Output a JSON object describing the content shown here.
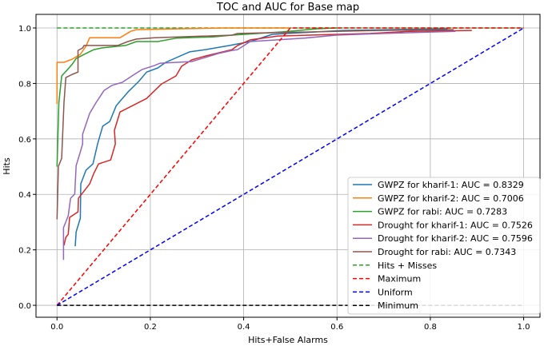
{
  "chart_data": {
    "type": "line",
    "title": "TOC and AUC for Base map",
    "xlabel": "Hits+False Alarms",
    "ylabel": "Hits",
    "xlim": [
      -0.045,
      1.035
    ],
    "ylim": [
      -0.043,
      1.049
    ],
    "xticks": [
      "0.0",
      "0.2",
      "0.4",
      "0.6",
      "0.8",
      "1.0"
    ],
    "yticks": [
      "0.0",
      "0.2",
      "0.4",
      "0.6",
      "0.8",
      "1.0"
    ],
    "grid": true,
    "legend_position": "lower-right",
    "series": [
      {
        "name": "GWPZ for kharif-1: AUC = 0.8329",
        "color": "#1f77b4",
        "dash": false,
        "points": [
          [
            0.039,
            0.213
          ],
          [
            0.041,
            0.265
          ],
          [
            0.05,
            0.314
          ],
          [
            0.051,
            0.438
          ],
          [
            0.062,
            0.487
          ],
          [
            0.077,
            0.51
          ],
          [
            0.087,
            0.582
          ],
          [
            0.098,
            0.646
          ],
          [
            0.113,
            0.663
          ],
          [
            0.127,
            0.72
          ],
          [
            0.152,
            0.769
          ],
          [
            0.175,
            0.807
          ],
          [
            0.192,
            0.841
          ],
          [
            0.216,
            0.856
          ],
          [
            0.233,
            0.876
          ],
          [
            0.284,
            0.914
          ],
          [
            0.318,
            0.922
          ],
          [
            0.37,
            0.937
          ],
          [
            0.414,
            0.951
          ],
          [
            0.461,
            0.977
          ],
          [
            0.61,
            0.991
          ],
          [
            0.837,
            0.997
          ]
        ]
      },
      {
        "name": "GWPZ for kharif-2: AUC = 0.7006",
        "color": "#ff7f0e",
        "dash": false,
        "points": [
          [
            0.0,
            0.726
          ],
          [
            0.0,
            0.876
          ],
          [
            0.015,
            0.876
          ],
          [
            0.033,
            0.888
          ],
          [
            0.05,
            0.905
          ],
          [
            0.062,
            0.934
          ],
          [
            0.07,
            0.965
          ],
          [
            0.135,
            0.965
          ],
          [
            0.158,
            0.988
          ],
          [
            0.17,
            0.994
          ],
          [
            0.358,
            1.0
          ],
          [
            0.5,
            1.0
          ]
        ]
      },
      {
        "name": "GWPZ for rabi: AUC = 0.7283",
        "color": "#2ca02c",
        "dash": false,
        "points": [
          [
            0.0,
            0.5
          ],
          [
            0.004,
            0.732
          ],
          [
            0.01,
            0.827
          ],
          [
            0.021,
            0.847
          ],
          [
            0.033,
            0.87
          ],
          [
            0.041,
            0.89
          ],
          [
            0.062,
            0.908
          ],
          [
            0.079,
            0.922
          ],
          [
            0.096,
            0.928
          ],
          [
            0.13,
            0.934
          ],
          [
            0.147,
            0.937
          ],
          [
            0.17,
            0.951
          ],
          [
            0.216,
            0.951
          ],
          [
            0.255,
            0.963
          ],
          [
            0.336,
            0.968
          ],
          [
            0.375,
            0.974
          ],
          [
            0.483,
            0.986
          ],
          [
            0.558,
            0.997
          ],
          [
            0.6,
            1.0
          ]
        ]
      },
      {
        "name": "Drought for kharif-1: AUC = 0.7526",
        "color": "#d62728",
        "dash": false,
        "points": [
          [
            0.015,
            0.216
          ],
          [
            0.019,
            0.245
          ],
          [
            0.024,
            0.256
          ],
          [
            0.027,
            0.317
          ],
          [
            0.045,
            0.337
          ],
          [
            0.046,
            0.386
          ],
          [
            0.07,
            0.438
          ],
          [
            0.079,
            0.476
          ],
          [
            0.089,
            0.51
          ],
          [
            0.115,
            0.524
          ],
          [
            0.125,
            0.582
          ],
          [
            0.123,
            0.631
          ],
          [
            0.135,
            0.697
          ],
          [
            0.192,
            0.746
          ],
          [
            0.224,
            0.798
          ],
          [
            0.255,
            0.827
          ],
          [
            0.267,
            0.862
          ],
          [
            0.289,
            0.885
          ],
          [
            0.318,
            0.899
          ],
          [
            0.375,
            0.922
          ],
          [
            0.387,
            0.937
          ],
          [
            0.414,
            0.957
          ],
          [
            0.473,
            0.971
          ],
          [
            0.671,
            0.98
          ],
          [
            0.757,
            0.988
          ],
          [
            0.889,
            0.991
          ]
        ]
      },
      {
        "name": "Drought for kharif-2: AUC = 0.7596",
        "color": "#9467bd",
        "dash": false,
        "points": [
          [
            0.014,
            0.164
          ],
          [
            0.014,
            0.28
          ],
          [
            0.024,
            0.323
          ],
          [
            0.029,
            0.386
          ],
          [
            0.038,
            0.401
          ],
          [
            0.041,
            0.504
          ],
          [
            0.05,
            0.553
          ],
          [
            0.055,
            0.582
          ],
          [
            0.055,
            0.617
          ],
          [
            0.07,
            0.692
          ],
          [
            0.084,
            0.732
          ],
          [
            0.101,
            0.775
          ],
          [
            0.118,
            0.793
          ],
          [
            0.14,
            0.804
          ],
          [
            0.166,
            0.833
          ],
          [
            0.182,
            0.85
          ],
          [
            0.209,
            0.865
          ],
          [
            0.221,
            0.873
          ],
          [
            0.289,
            0.879
          ],
          [
            0.346,
            0.908
          ],
          [
            0.375,
            0.919
          ],
          [
            0.387,
            0.922
          ],
          [
            0.414,
            0.951
          ],
          [
            0.529,
            0.963
          ],
          [
            0.598,
            0.974
          ],
          [
            0.7,
            0.98
          ],
          [
            0.854,
            0.988
          ]
        ]
      },
      {
        "name": "Drought for rabi: AUC = 0.7343",
        "color": "#8c564b",
        "dash": false,
        "points": [
          [
            0.0,
            0.31
          ],
          [
            0.003,
            0.501
          ],
          [
            0.01,
            0.53
          ],
          [
            0.015,
            0.732
          ],
          [
            0.019,
            0.821
          ],
          [
            0.033,
            0.833
          ],
          [
            0.045,
            0.841
          ],
          [
            0.045,
            0.919
          ],
          [
            0.055,
            0.928
          ],
          [
            0.058,
            0.937
          ],
          [
            0.13,
            0.937
          ],
          [
            0.152,
            0.951
          ],
          [
            0.17,
            0.96
          ],
          [
            0.209,
            0.965
          ],
          [
            0.375,
            0.974
          ],
          [
            0.387,
            0.98
          ],
          [
            0.688,
            0.991
          ],
          [
            0.85,
            0.994
          ]
        ]
      },
      {
        "name": "Hits + Misses",
        "color": "#2ca02c",
        "dash": true,
        "points": [
          [
            0.0,
            1.0
          ],
          [
            1.0,
            1.0
          ]
        ]
      },
      {
        "name": "Maximum",
        "color": "#ff0000",
        "dash": true,
        "points": [
          [
            0.0,
            0.0
          ],
          [
            0.5,
            1.0
          ],
          [
            1.0,
            1.0
          ]
        ]
      },
      {
        "name": "Uniform",
        "color": "#0000ff",
        "dash": true,
        "points": [
          [
            0.0,
            0.0
          ],
          [
            1.0,
            1.0
          ]
        ]
      },
      {
        "name": "Minimum",
        "color": "#000000",
        "dash": true,
        "points": [
          [
            0.0,
            0.0
          ],
          [
            1.0,
            0.0
          ]
        ]
      }
    ]
  }
}
